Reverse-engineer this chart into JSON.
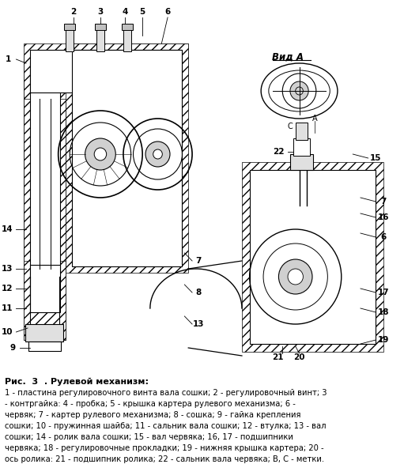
{
  "title": "Рулевой механизм:",
  "fig_label": "Рис.  3  . Рулевой механизм:",
  "caption_lines": [
    "1 - пластина регулировочного винта вала сошки; 2 - регулировочный винт; 3",
    "- контргайка: 4 - пробка; 5 - крышка картера рулевого механизма; 6 -",
    "червяк; 7 - картер рулевого механизма; 8 - сошка; 9 - гайка крепления",
    "сошки; 10 - пружинная шайба; 11 - сальник вала сошки; 12 - втулка; 13 - вал",
    "сошки; 14 - ролик вала сошки; 15 - вал червяка; 16, 17 - подшипники",
    "червяка; 18 - регулировочные прокладки; 19 - нижняя крышка картера; 20 -",
    "ось ролика: 21 - подшипник ролика; 22 - сальник вала червяка; В, С - метки."
  ],
  "caption_bold_part": "Рис.  3  . Рулевой механизм:",
  "bg_color": "#ffffff",
  "text_color": "#000000",
  "diagram_color": "#000000",
  "view_a_label": "Вид А",
  "fig_width": 5.11,
  "fig_height": 5.92,
  "dpi": 100
}
